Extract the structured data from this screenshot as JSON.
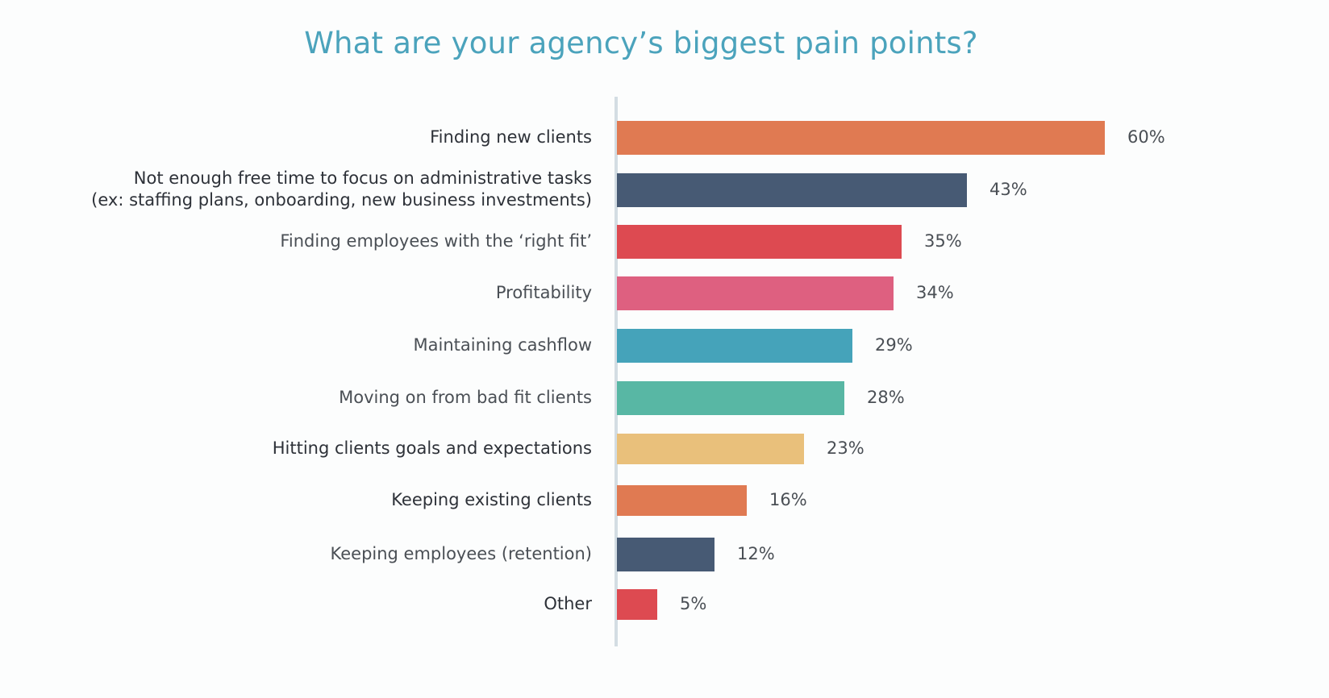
{
  "chart_data": {
    "type": "bar",
    "orientation": "horizontal",
    "title": "What are your agency’s biggest pain points?",
    "categories": [
      [
        "Finding new clients"
      ],
      [
        "Not enough free time to focus on administrative tasks",
        "(ex: staffing plans, onboarding, new business investments)"
      ],
      [
        "Finding employees with the ‘right fit’"
      ],
      [
        "Profitability"
      ],
      [
        "Maintaining cashflow"
      ],
      [
        "Moving on from bad fit clients"
      ],
      [
        "Hitting clients goals and expectations"
      ],
      [
        "Keeping existing clients"
      ],
      [
        "Keeping employees (retention)"
      ],
      [
        "Other"
      ]
    ],
    "values": [
      60,
      43,
      35,
      34,
      29,
      28,
      23,
      16,
      12,
      5
    ],
    "value_labels": [
      "60%",
      "43%",
      "35%",
      "34%",
      "29%",
      "28%",
      "23%",
      "16%",
      "12%",
      "5%"
    ],
    "colors": [
      "#e07a52",
      "#475a74",
      "#dd4a51",
      "#de6080",
      "#45a3ba",
      "#58b7a4",
      "#e9c07b",
      "#e07a52",
      "#475a74",
      "#dd4a51"
    ],
    "xlim": [
      0,
      60
    ],
    "grid": false,
    "legend": "none"
  }
}
